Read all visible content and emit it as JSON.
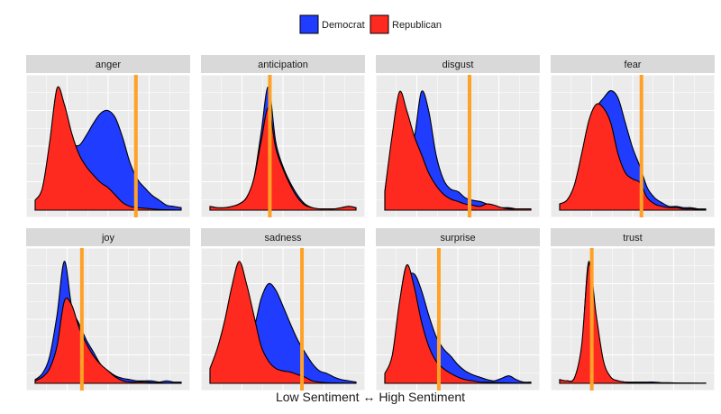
{
  "chart_data": {
    "type": "area",
    "xlabel": "Low Sentiment ↔ High Sentiment",
    "ylabel": "",
    "legend": {
      "position": "top"
    },
    "grid": true,
    "series": [
      {
        "name": "Democrat",
        "color": "#1F3CFF"
      },
      {
        "name": "Republican",
        "color": "#FF2A1F"
      }
    ],
    "x": [
      0.0,
      0.05,
      0.1,
      0.15,
      0.2,
      0.25,
      0.3,
      0.35,
      0.4,
      0.45,
      0.5,
      0.55,
      0.6,
      0.65,
      0.7,
      0.75,
      0.8,
      0.85,
      0.9,
      0.95,
      1.0
    ],
    "facets": [
      {
        "label": "anger",
        "vline": 0.69,
        "Democrat": [
          0.02,
          0.08,
          0.35,
          0.75,
          0.72,
          0.55,
          0.52,
          0.6,
          0.7,
          0.78,
          0.8,
          0.74,
          0.58,
          0.38,
          0.25,
          0.18,
          0.12,
          0.08,
          0.04,
          0.03,
          0.02
        ],
        "Republican": [
          0.08,
          0.18,
          0.55,
          0.98,
          0.85,
          0.62,
          0.45,
          0.35,
          0.28,
          0.22,
          0.18,
          0.12,
          0.06,
          0.03,
          0.02,
          0.015,
          0.01,
          0.005,
          0.003,
          0.002,
          0.001
        ]
      },
      {
        "label": "anticipation",
        "vline": 0.41,
        "Democrat": [
          0.03,
          0.02,
          0.02,
          0.03,
          0.05,
          0.1,
          0.25,
          0.62,
          0.99,
          0.55,
          0.35,
          0.22,
          0.12,
          0.05,
          0.02,
          0.01,
          0.01,
          0.01,
          0.02,
          0.03,
          0.02
        ],
        "Republican": [
          0.03,
          0.02,
          0.02,
          0.03,
          0.05,
          0.1,
          0.25,
          0.55,
          0.82,
          0.5,
          0.33,
          0.2,
          0.1,
          0.04,
          0.02,
          0.01,
          0.01,
          0.01,
          0.02,
          0.03,
          0.02
        ]
      },
      {
        "label": "disgust",
        "vline": 0.58,
        "Democrat": [
          0.15,
          0.55,
          0.8,
          0.6,
          0.58,
          0.95,
          0.8,
          0.45,
          0.25,
          0.17,
          0.15,
          0.1,
          0.08,
          0.07,
          0.05,
          0.03,
          0.02,
          0.02,
          0.01,
          0.01,
          0.01
        ],
        "Republican": [
          0.15,
          0.6,
          0.95,
          0.8,
          0.6,
          0.45,
          0.3,
          0.2,
          0.13,
          0.09,
          0.07,
          0.05,
          0.04,
          0.03,
          0.05,
          0.04,
          0.02,
          0.01,
          0.01,
          0.01,
          0.01
        ]
      },
      {
        "label": "fear",
        "vline": 0.56,
        "Democrat": [
          0.05,
          0.08,
          0.18,
          0.4,
          0.65,
          0.82,
          0.9,
          0.96,
          0.9,
          0.7,
          0.5,
          0.35,
          0.18,
          0.1,
          0.06,
          0.03,
          0.03,
          0.02,
          0.02,
          0.01,
          0.01
        ],
        "Republican": [
          0.05,
          0.08,
          0.2,
          0.45,
          0.72,
          0.85,
          0.82,
          0.7,
          0.45,
          0.3,
          0.25,
          0.22,
          0.1,
          0.05,
          0.03,
          0.02,
          0.02,
          0.01,
          0.01,
          0.005,
          0.003
        ]
      },
      {
        "label": "joy",
        "vline": 0.32,
        "Democrat": [
          0.03,
          0.08,
          0.22,
          0.55,
          0.98,
          0.62,
          0.48,
          0.35,
          0.25,
          0.15,
          0.1,
          0.06,
          0.04,
          0.03,
          0.02,
          0.02,
          0.02,
          0.01,
          0.02,
          0.01,
          0.01
        ],
        "Republican": [
          0.02,
          0.05,
          0.12,
          0.3,
          0.66,
          0.63,
          0.45,
          0.32,
          0.22,
          0.15,
          0.1,
          0.05,
          0.02,
          0.01,
          0.01,
          0.01,
          0.005,
          0.003,
          0.002,
          0.001,
          0.001
        ]
      },
      {
        "label": "sadness",
        "vline": 0.63,
        "Democrat": [
          0.1,
          0.2,
          0.35,
          0.55,
          0.62,
          0.5,
          0.45,
          0.68,
          0.8,
          0.75,
          0.62,
          0.48,
          0.35,
          0.25,
          0.16,
          0.1,
          0.08,
          0.05,
          0.03,
          0.02,
          0.01
        ],
        "Republican": [
          0.12,
          0.28,
          0.5,
          0.78,
          0.98,
          0.8,
          0.55,
          0.3,
          0.18,
          0.12,
          0.1,
          0.09,
          0.07,
          0.05,
          0.02,
          0.01,
          0.005,
          0.003,
          0.002,
          0.001,
          0.001
        ]
      },
      {
        "label": "surprise",
        "vline": 0.37,
        "Democrat": [
          0.05,
          0.15,
          0.45,
          0.82,
          0.88,
          0.75,
          0.55,
          0.38,
          0.28,
          0.22,
          0.15,
          0.1,
          0.07,
          0.05,
          0.03,
          0.02,
          0.04,
          0.06,
          0.03,
          0.01,
          0.01
        ],
        "Republican": [
          0.08,
          0.22,
          0.65,
          0.95,
          0.78,
          0.5,
          0.3,
          0.18,
          0.12,
          0.08,
          0.05,
          0.03,
          0.02,
          0.01,
          0.008,
          0.006,
          0.004,
          0.003,
          0.002,
          0.001,
          0.001
        ]
      },
      {
        "label": "trust",
        "vline": 0.22,
        "Democrat": [
          0.03,
          0.02,
          0.04,
          0.25,
          0.98,
          0.3,
          0.1,
          0.04,
          0.02,
          0.01,
          0.01,
          0.01,
          0.01,
          0.01,
          0.005,
          0.005,
          0.003,
          0.002,
          0.002,
          0.001,
          0.001
        ],
        "Republican": [
          0.03,
          0.02,
          0.04,
          0.3,
          0.96,
          0.55,
          0.18,
          0.05,
          0.02,
          0.01,
          0.005,
          0.003,
          0.002,
          0.001,
          0.001,
          0.001,
          0.001,
          0.001,
          0.001,
          0.001,
          0.001
        ]
      }
    ]
  },
  "legend_items": [
    {
      "label": "Democrat"
    },
    {
      "label": "Republican"
    }
  ]
}
